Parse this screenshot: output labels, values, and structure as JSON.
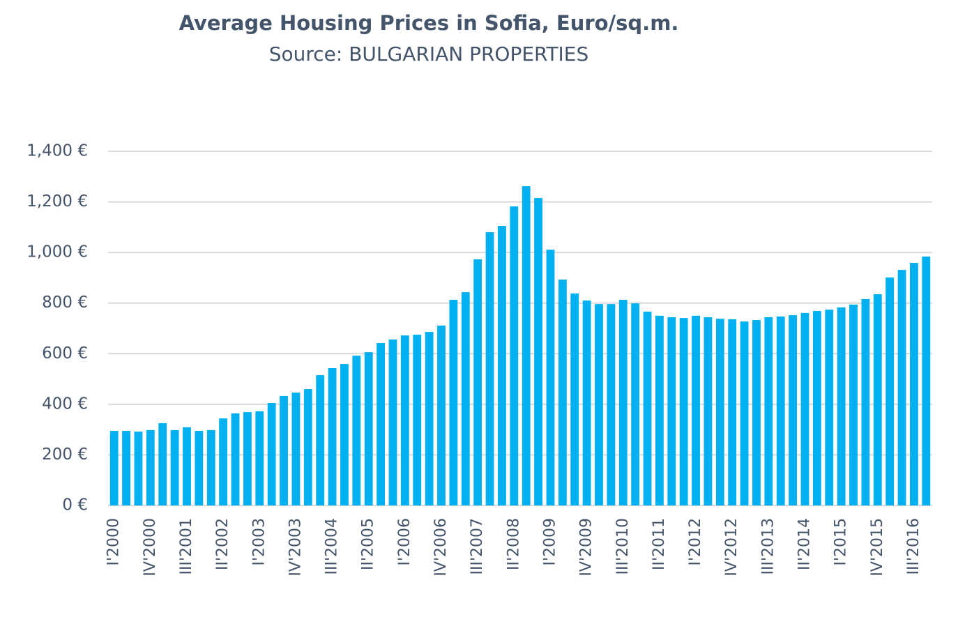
{
  "chart_data": {
    "type": "bar",
    "title": "Average Housing Prices in Sofia, Euro/sq.m.",
    "subtitle": "Source: BULGARIAN PROPERTIES",
    "categories": [
      "I'2000",
      null,
      null,
      "IV'2000",
      null,
      null,
      "III'2001",
      null,
      null,
      "II'2002",
      null,
      null,
      "I'2003",
      null,
      null,
      "IV'2003",
      null,
      null,
      "III'2004",
      null,
      null,
      "II'2005",
      null,
      null,
      "I'2006",
      null,
      null,
      "IV'2006",
      null,
      null,
      "III'2007",
      null,
      null,
      "II'2008",
      null,
      null,
      "I'2009",
      null,
      null,
      "IV'2009",
      null,
      null,
      "III'2010",
      null,
      null,
      "II'2011",
      null,
      null,
      "I'2012",
      null,
      null,
      "IV'2012",
      null,
      null,
      "III'2013",
      null,
      null,
      "II'2014",
      null,
      null,
      "I'2015",
      null,
      null,
      "IV'2015",
      null,
      null,
      "III'2016",
      null
    ],
    "values": [
      295,
      295,
      292,
      298,
      325,
      298,
      309,
      295,
      298,
      344,
      364,
      369,
      372,
      405,
      433,
      446,
      460,
      515,
      543,
      559,
      592,
      606,
      642,
      656,
      672,
      675,
      686,
      711,
      813,
      843,
      973,
      1080,
      1105,
      1182,
      1262,
      1215,
      1011,
      893,
      838,
      810,
      796,
      796,
      813,
      799,
      766,
      750,
      744,
      741,
      750,
      744,
      738,
      736,
      727,
      733,
      744,
      747,
      752,
      761,
      769,
      774,
      783,
      794,
      816,
      835,
      901,
      931,
      959,
      984
    ],
    "color": "#00b0f0",
    "ylim": [
      0,
      1400
    ],
    "yticks": [
      {
        "value": 0,
        "label": "0 €"
      },
      {
        "value": 200,
        "label": "200 €"
      },
      {
        "value": 400,
        "label": "400 €"
      },
      {
        "value": 600,
        "label": "600 €"
      },
      {
        "value": 800,
        "label": "800 €"
      },
      {
        "value": 1000,
        "label": "1,000 €"
      },
      {
        "value": 1200,
        "label": "1,200 €"
      },
      {
        "value": 1400,
        "label": "1,400 €"
      }
    ],
    "grid": true
  }
}
